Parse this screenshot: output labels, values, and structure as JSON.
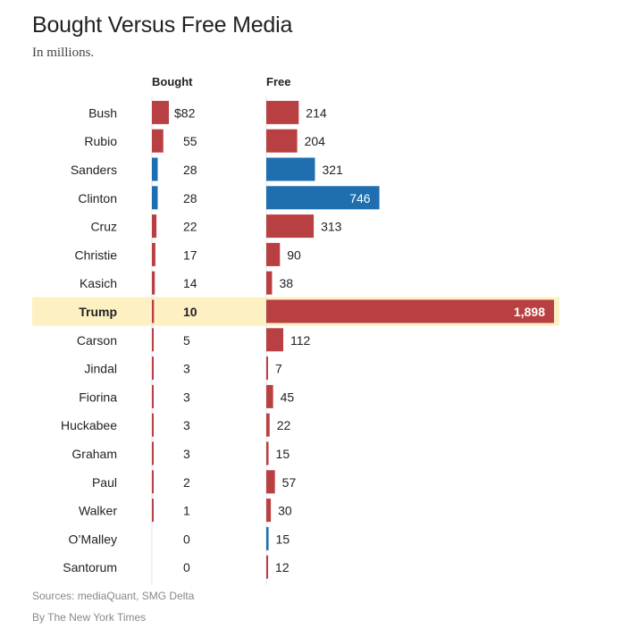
{
  "title": "Bought Versus Free Media",
  "subtitle": "In millions.",
  "colors": {
    "republican": "#b94042",
    "democrat": "#1f6eaf",
    "highlight": "#fdf1c4",
    "axis": "#e3e3e3"
  },
  "chart_data": {
    "type": "bar",
    "title": "Bought Versus Free Media",
    "subtitle": "In millions.",
    "column_headers": {
      "bought": "Bought",
      "free": "Free"
    },
    "highlight": "Trump",
    "rows": [
      {
        "name": "Bush",
        "party": "R",
        "bought": 82,
        "bought_label": "$82",
        "free": 214,
        "free_label": "214"
      },
      {
        "name": "Rubio",
        "party": "R",
        "bought": 55,
        "bought_label": "55",
        "free": 204,
        "free_label": "204"
      },
      {
        "name": "Sanders",
        "party": "D",
        "bought": 28,
        "bought_label": "28",
        "free": 321,
        "free_label": "321"
      },
      {
        "name": "Clinton",
        "party": "D",
        "bought": 28,
        "bought_label": "28",
        "free": 746,
        "free_label": "746"
      },
      {
        "name": "Cruz",
        "party": "R",
        "bought": 22,
        "bought_label": "22",
        "free": 313,
        "free_label": "313"
      },
      {
        "name": "Christie",
        "party": "R",
        "bought": 17,
        "bought_label": "17",
        "free": 90,
        "free_label": "90"
      },
      {
        "name": "Kasich",
        "party": "R",
        "bought": 14,
        "bought_label": "14",
        "free": 38,
        "free_label": "38"
      },
      {
        "name": "Trump",
        "party": "R",
        "bought": 10,
        "bought_label": "10",
        "free": 1898,
        "free_label": "1,898"
      },
      {
        "name": "Carson",
        "party": "R",
        "bought": 5,
        "bought_label": "5",
        "free": 112,
        "free_label": "112"
      },
      {
        "name": "Jindal",
        "party": "R",
        "bought": 3,
        "bought_label": "3",
        "free": 7,
        "free_label": "7"
      },
      {
        "name": "Fiorina",
        "party": "R",
        "bought": 3,
        "bought_label": "3",
        "free": 45,
        "free_label": "45"
      },
      {
        "name": "Huckabee",
        "party": "R",
        "bought": 3,
        "bought_label": "3",
        "free": 22,
        "free_label": "22"
      },
      {
        "name": "Graham",
        "party": "R",
        "bought": 3,
        "bought_label": "3",
        "free": 15,
        "free_label": "15"
      },
      {
        "name": "Paul",
        "party": "R",
        "bought": 2,
        "bought_label": "2",
        "free": 57,
        "free_label": "57"
      },
      {
        "name": "Walker",
        "party": "R",
        "bought": 1,
        "bought_label": "1",
        "free": 30,
        "free_label": "30"
      },
      {
        "name": "O’Malley",
        "party": "D",
        "bought": 0,
        "bought_label": "0",
        "free": 15,
        "free_label": "15"
      },
      {
        "name": "Santorum",
        "party": "R",
        "bought": 0,
        "bought_label": "0",
        "free": 12,
        "free_label": "12"
      }
    ]
  },
  "footer": {
    "sources": "Sources: mediaQuant, SMG Delta",
    "credit": "By The New York Times"
  }
}
